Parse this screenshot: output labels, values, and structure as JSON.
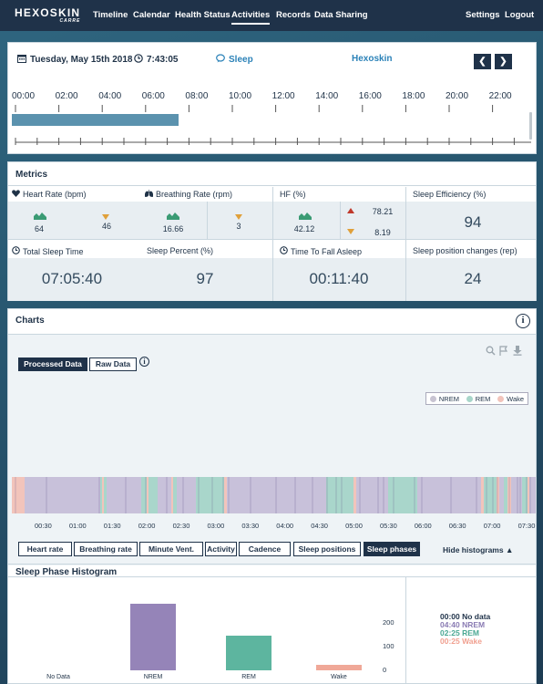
{
  "nav": {
    "logo_main": "HEXOSKIN",
    "logo_sub": "CARRE",
    "items": [
      "Timeline",
      "Calendar",
      "Health Status",
      "Activities",
      "Records",
      "Data Sharing"
    ],
    "active": "Activities",
    "settings": "Settings",
    "logout": "Logout"
  },
  "header": {
    "date": "Tuesday, May 15th 2018",
    "time": "7:43:05",
    "activity": "Sleep",
    "device": "Hexoskin",
    "prev": "❮",
    "next": "❯"
  },
  "timeline": {
    "labels": [
      "00:00",
      "02:00",
      "04:00",
      "06:00",
      "08:00",
      "10:00",
      "12:00",
      "14:00",
      "16:00",
      "18:00",
      "20:00",
      "22:00"
    ],
    "bar_start_hour": 0,
    "bar_end_hour": 7.7
  },
  "metrics": {
    "title": "Metrics",
    "heart_rate": {
      "label": "Heart Rate (bpm)",
      "avg": "64",
      "min": "46"
    },
    "breathing_rate": {
      "label": "Breathing Rate (rpm)",
      "avg": "16.66",
      "min": "3"
    },
    "hf": {
      "label": "HF (%)",
      "avg": "42.12",
      "max": "78.21",
      "min": "8.19"
    },
    "sleep_efficiency": {
      "label": "Sleep Efficiency (%)",
      "value": "94"
    },
    "total_sleep_time": {
      "label": "Total Sleep Time",
      "value": "07:05:40"
    },
    "sleep_percent": {
      "label": "Sleep Percent (%)",
      "value": "97"
    },
    "time_to_fall_asleep": {
      "label": "Time To Fall Asleep",
      "value": "00:11:40"
    },
    "sleep_position_changes": {
      "label": "Sleep position changes (rep)",
      "value": "24"
    }
  },
  "charts": {
    "title": "Charts",
    "info": "i",
    "processed": "Processed Data",
    "raw": "Raw Data",
    "legend": [
      "NREM",
      "REM",
      "Wake"
    ],
    "x_ticks": [
      "00:30",
      "01:00",
      "01:30",
      "02:00",
      "02:30",
      "03:00",
      "03:30",
      "04:00",
      "04:30",
      "05:00",
      "05:30",
      "06:00",
      "06:30",
      "07:00",
      "07:30"
    ],
    "tabs": [
      "Heart rate",
      "Breathing rate",
      "Minute Vent.",
      "Activity",
      "Cadence",
      "Sleep positions",
      "Sleep phases"
    ],
    "selected_tab": "Sleep phases",
    "hide": "Hide histograms ▲"
  },
  "colors": {
    "nrem": "#b7acd0",
    "rem": "#8fcabb",
    "wake": "#f0b9ad",
    "nav": "#1f3249",
    "accent": "#2b82b8"
  },
  "histogram": {
    "title": "Sleep Phase Histogram",
    "summary": [
      {
        "text": "00:00 No data",
        "color": "#1f3249"
      },
      {
        "text": "04:40 NREM",
        "color": "#8a7bb3"
      },
      {
        "text": "02:25 REM",
        "color": "#4aa893"
      },
      {
        "text": "00:25 Wake",
        "color": "#f0a090"
      }
    ]
  },
  "chart_data": {
    "type": "bar",
    "title": "Sleep Phase Histogram",
    "categories": [
      "No Data",
      "NREM",
      "REM",
      "Wake"
    ],
    "values": [
      0,
      280,
      145,
      25
    ],
    "ylim": [
      0,
      300
    ],
    "yticks": [
      "0",
      "100",
      "200"
    ],
    "colors": [
      "#999999",
      "#9584b8",
      "#5db59f",
      "#f0a898"
    ]
  }
}
